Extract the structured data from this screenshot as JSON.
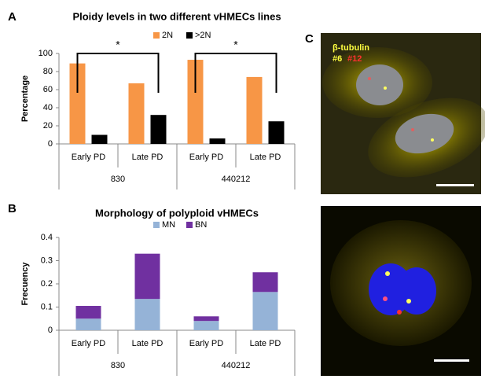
{
  "panel_labels": [
    "A",
    "B",
    "C"
  ],
  "chart_data": [
    {
      "type": "bar",
      "title": "Ploidy levels in two different vHMECs lines",
      "y_label": "Percentage",
      "categories": [
        "Early PD",
        "Late PD",
        "Early PD",
        "Late PD"
      ],
      "groups": [
        "830",
        "440212"
      ],
      "series": [
        {
          "name": "2N",
          "color": "#f79646",
          "values": [
            89,
            67,
            93,
            74
          ]
        },
        {
          "name": ">2N",
          "color": "#000000",
          "values": [
            10,
            32,
            6,
            25
          ]
        }
      ],
      "ylim": [
        0,
        100
      ],
      "yticks": [
        0,
        20,
        40,
        60,
        80,
        100
      ],
      "annotations": [
        "*",
        "*"
      ]
    },
    {
      "type": "stacked_bar",
      "title": "Morphology of polyploid vHMECs",
      "y_label": "Frecuency",
      "categories": [
        "Early PD",
        "Late PD",
        "Early PD",
        "Late PD"
      ],
      "groups": [
        "830",
        "440212"
      ],
      "series": [
        {
          "name": "MN",
          "color": "#95b3d7",
          "values": [
            0.05,
            0.135,
            0.04,
            0.165
          ]
        },
        {
          "name": "BN",
          "color": "#7030a0",
          "values": [
            0.055,
            0.195,
            0.02,
            0.085
          ]
        }
      ],
      "ylim": [
        0,
        0.4
      ],
      "yticks": [
        0,
        0.1,
        0.2,
        0.3,
        0.4
      ]
    }
  ],
  "image_labels": [
    "β-tubulin",
    "#6",
    "#12"
  ]
}
